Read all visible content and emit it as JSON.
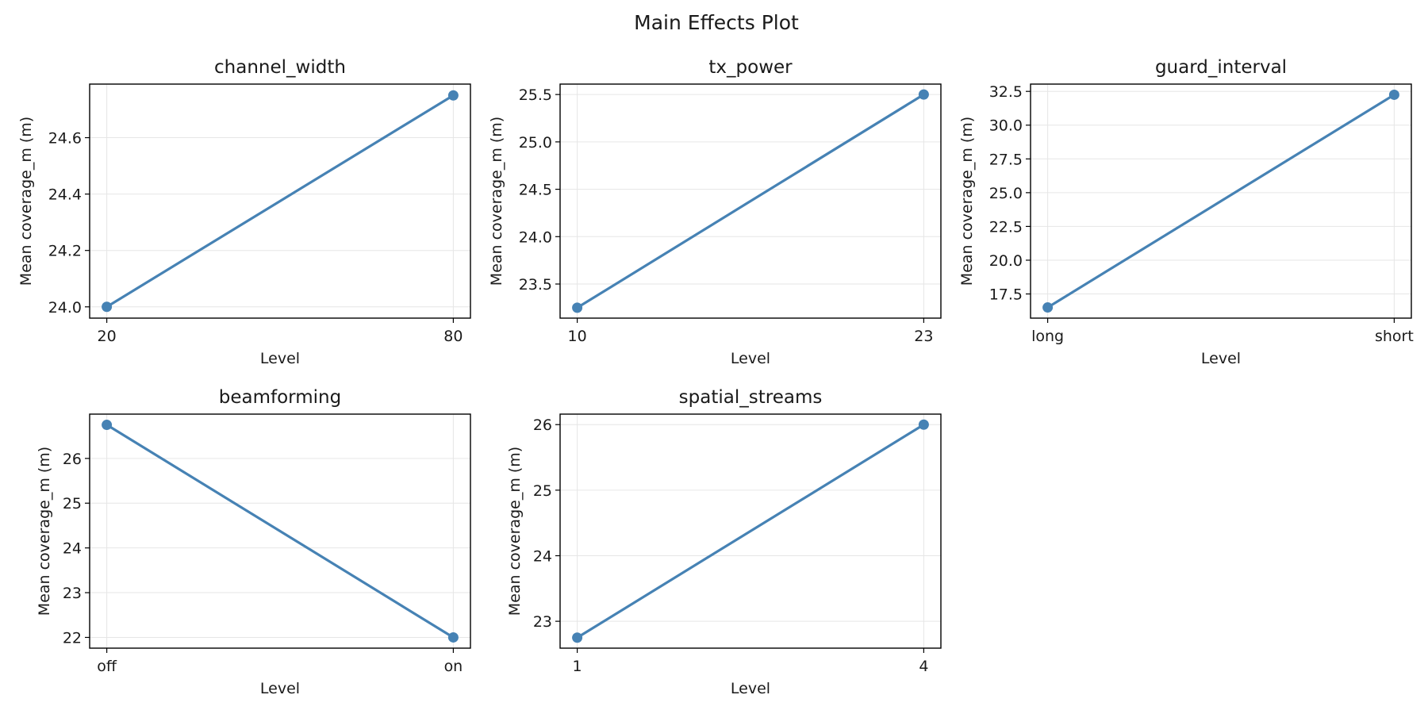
{
  "figure_title": "Main Effects Plot",
  "line_color": "#4682b4",
  "chart_data": [
    {
      "type": "line",
      "title": "channel_width",
      "xlabel": "Level",
      "ylabel": "Mean coverage_m (m)",
      "x": [
        "20",
        "80"
      ],
      "values": [
        24.0,
        24.75
      ],
      "ylim": [
        23.96,
        24.79
      ],
      "yticks": [
        24.0,
        24.2,
        24.4,
        24.6
      ],
      "ytick_labels": [
        "24.0",
        "24.2",
        "24.4",
        "24.6"
      ],
      "grid": true
    },
    {
      "type": "line",
      "title": "tx_power",
      "xlabel": "Level",
      "ylabel": "Mean coverage_m (m)",
      "x": [
        "10",
        "23"
      ],
      "values": [
        23.25,
        25.5
      ],
      "ylim": [
        23.14,
        25.61
      ],
      "yticks": [
        23.5,
        24.0,
        24.5,
        25.0,
        25.5
      ],
      "ytick_labels": [
        "23.5",
        "24.0",
        "24.5",
        "25.0",
        "25.5"
      ],
      "grid": true
    },
    {
      "type": "line",
      "title": "guard_interval",
      "xlabel": "Level",
      "ylabel": "Mean coverage_m (m)",
      "x": [
        "long",
        "short"
      ],
      "values": [
        16.5,
        32.25
      ],
      "ylim": [
        15.71,
        33.04
      ],
      "yticks": [
        17.5,
        20.0,
        22.5,
        25.0,
        27.5,
        30.0,
        32.5
      ],
      "ytick_labels": [
        "17.5",
        "20.0",
        "22.5",
        "25.0",
        "27.5",
        "30.0",
        "32.5"
      ],
      "grid": true
    },
    {
      "type": "line",
      "title": "beamforming",
      "xlabel": "Level",
      "ylabel": "Mean coverage_m (m)",
      "x": [
        "off",
        "on"
      ],
      "values": [
        26.75,
        22.0
      ],
      "ylim": [
        21.76,
        26.99
      ],
      "yticks": [
        22,
        23,
        24,
        25,
        26
      ],
      "ytick_labels": [
        "22",
        "23",
        "24",
        "25",
        "26"
      ],
      "grid": true
    },
    {
      "type": "line",
      "title": "spatial_streams",
      "xlabel": "Level",
      "ylabel": "Mean coverage_m (m)",
      "x": [
        "1",
        "4"
      ],
      "values": [
        22.75,
        26.0
      ],
      "ylim": [
        22.59,
        26.16
      ],
      "yticks": [
        23,
        24,
        25,
        26
      ],
      "ytick_labels": [
        "23",
        "24",
        "25",
        "26"
      ],
      "grid": true
    }
  ]
}
